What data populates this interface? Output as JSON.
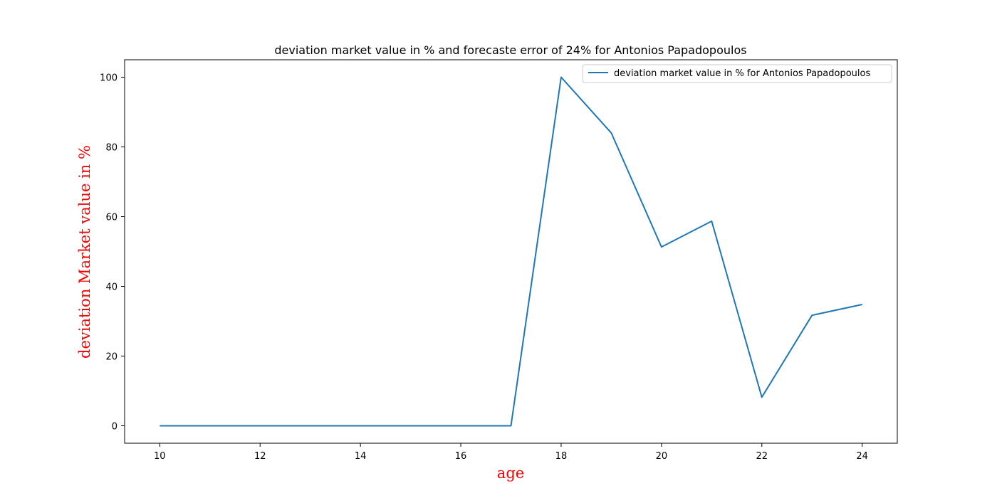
{
  "chart_data": {
    "type": "line",
    "title": "deviation market value in % and forecaste error of 24% for Antonios Papadopoulos",
    "xlabel": "age",
    "ylabel": "deviation Market value in %",
    "xlim": [
      9.3,
      24.7
    ],
    "ylim": [
      -5,
      105
    ],
    "xticks": [
      10,
      12,
      14,
      16,
      18,
      20,
      22,
      24
    ],
    "yticks": [
      0,
      20,
      40,
      60,
      80,
      100
    ],
    "grid": false,
    "legend_position": "upper right",
    "label_color": "#ff0000",
    "series": [
      {
        "name": "deviation market value in % for Antonios Papadopoulos",
        "color": "#1f77b4",
        "x": [
          10,
          11,
          12,
          13,
          14,
          15,
          16,
          17,
          18,
          19,
          20,
          21,
          22,
          23,
          24
        ],
        "y": [
          0,
          0,
          0,
          0,
          0,
          0,
          0,
          0,
          100,
          84,
          51.3,
          58.7,
          8.2,
          31.7,
          34.8
        ]
      }
    ]
  }
}
